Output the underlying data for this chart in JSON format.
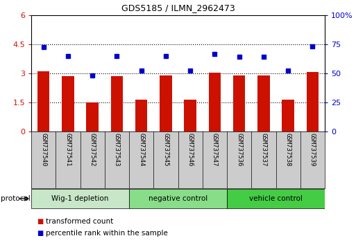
{
  "title": "GDS5185 / ILMN_2962473",
  "samples": [
    "GSM737540",
    "GSM737541",
    "GSM737542",
    "GSM737543",
    "GSM737544",
    "GSM737545",
    "GSM737546",
    "GSM737547",
    "GSM737536",
    "GSM737537",
    "GSM737538",
    "GSM737539"
  ],
  "bar_values": [
    3.1,
    2.85,
    1.5,
    2.85,
    1.65,
    2.9,
    1.65,
    3.05,
    2.9,
    2.9,
    1.65,
    3.08
  ],
  "dot_values": [
    4.35,
    3.9,
    2.9,
    3.9,
    3.15,
    3.9,
    3.15,
    4.0,
    3.85,
    3.85,
    3.15,
    4.4
  ],
  "bar_color": "#cc1100",
  "dot_color": "#0000cc",
  "ylim_left": [
    0,
    6
  ],
  "ylim_right": [
    0,
    100
  ],
  "yticks_left": [
    0,
    1.5,
    3.0,
    4.5,
    6.0
  ],
  "ytick_labels_left": [
    "0",
    "1.5",
    "3",
    "4.5",
    "6"
  ],
  "yticks_right": [
    0,
    25,
    50,
    75,
    100
  ],
  "ytick_labels_right": [
    "0",
    "25",
    "50",
    "75",
    "100%"
  ],
  "groups": [
    {
      "label": "Wig-1 depletion",
      "start": 0,
      "end": 3,
      "color": "#c8e6c8"
    },
    {
      "label": "negative control",
      "start": 4,
      "end": 7,
      "color": "#88dd88"
    },
    {
      "label": "vehicle control",
      "start": 8,
      "end": 11,
      "color": "#44cc44"
    }
  ],
  "protocol_label": "protocol",
  "legend_bar_label": "transformed count",
  "legend_dot_label": "percentile rank within the sample",
  "background_color": "#ffffff",
  "panel_color": "#cccccc"
}
